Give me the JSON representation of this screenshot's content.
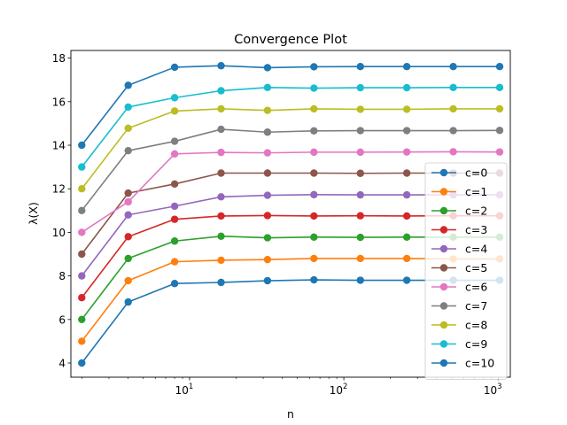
{
  "chart_data": {
    "type": "line",
    "title": "Convergence Plot",
    "xlabel": "n",
    "ylabel": "λ(X)",
    "xscale": "log",
    "xlim": [
      1.7,
      1200
    ],
    "ylim": [
      3.35,
      18.35
    ],
    "y_ticks": [
      4,
      6,
      8,
      10,
      12,
      14,
      16,
      18
    ],
    "x_major_ticks": [
      {
        "value": 10,
        "base": "10",
        "exp": "1"
      },
      {
        "value": 100,
        "base": "10",
        "exp": "2"
      },
      {
        "value": 1000,
        "base": "10",
        "exp": "3"
      }
    ],
    "x": [
      2,
      4,
      8,
      16,
      32,
      64,
      128,
      256,
      512,
      1024
    ],
    "legend": "right",
    "grid": false,
    "series": [
      {
        "name": "c=0",
        "color": "#1f77b4",
        "values": [
          4,
          6.8,
          7.65,
          7.7,
          7.78,
          7.82,
          7.8,
          7.8,
          7.8,
          7.8
        ]
      },
      {
        "name": "c=1",
        "color": "#ff7f0e",
        "values": [
          5,
          7.78,
          8.65,
          8.72,
          8.75,
          8.8,
          8.8,
          8.8,
          8.78,
          8.78
        ]
      },
      {
        "name": "c=2",
        "color": "#2ca02c",
        "values": [
          6,
          8.8,
          9.6,
          9.82,
          9.75,
          9.78,
          9.77,
          9.78,
          9.78,
          9.78
        ]
      },
      {
        "name": "c=3",
        "color": "#d62728",
        "values": [
          7,
          9.8,
          10.6,
          10.75,
          10.77,
          10.75,
          10.76,
          10.75,
          10.76,
          10.76
        ]
      },
      {
        "name": "c=4",
        "color": "#9467bd",
        "values": [
          8,
          10.8,
          11.2,
          11.63,
          11.7,
          11.73,
          11.72,
          11.72,
          11.72,
          11.72
        ]
      },
      {
        "name": "c=5",
        "color": "#8c564b",
        "values": [
          9,
          11.8,
          12.22,
          12.72,
          12.72,
          12.72,
          12.71,
          12.72,
          12.72,
          12.72
        ]
      },
      {
        "name": "c=6",
        "color": "#e377c2",
        "values": [
          10,
          11.4,
          13.6,
          13.67,
          13.65,
          13.68,
          13.68,
          13.69,
          13.7,
          13.69
        ]
      },
      {
        "name": "c=7",
        "color": "#7f7f7f",
        "values": [
          11,
          13.75,
          14.18,
          14.73,
          14.6,
          14.66,
          14.67,
          14.67,
          14.67,
          14.68
        ]
      },
      {
        "name": "c=8",
        "color": "#bcbd22",
        "values": [
          12,
          14.78,
          15.57,
          15.67,
          15.6,
          15.67,
          15.65,
          15.65,
          15.67,
          15.67
        ]
      },
      {
        "name": "c=9",
        "color": "#17becf",
        "values": [
          13,
          15.75,
          16.18,
          16.5,
          16.65,
          16.62,
          16.64,
          16.64,
          16.65,
          16.65
        ]
      },
      {
        "name": "c=10",
        "color": "#1f77b4",
        "values": [
          14,
          16.75,
          17.58,
          17.65,
          17.56,
          17.6,
          17.61,
          17.61,
          17.61,
          17.61
        ]
      }
    ]
  }
}
